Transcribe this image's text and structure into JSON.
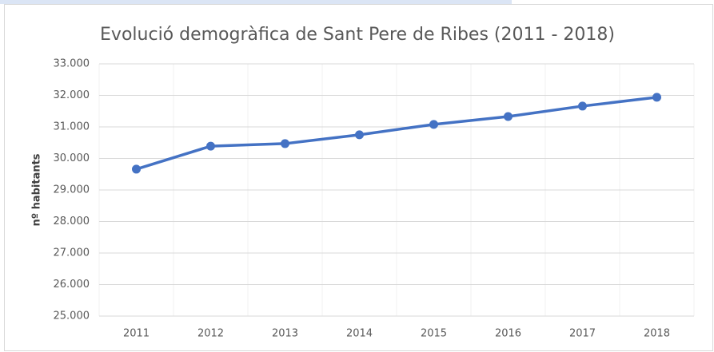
{
  "chart_data": {
    "type": "line",
    "title": "Evolució demogràfica de Sant Pere de Ribes (2011 - 2018)",
    "y_label": "nº habitants",
    "categories": [
      "2011",
      "2012",
      "2013",
      "2014",
      "2015",
      "2016",
      "2017",
      "2018"
    ],
    "series": [
      {
        "name": "nº habitants",
        "color": "#4472c4",
        "values": [
          29660,
          30390,
          30470,
          30750,
          31080,
          31330,
          31660,
          31940
        ]
      }
    ],
    "ylim": [
      25000,
      33000
    ],
    "yticks": [
      {
        "value": 25000,
        "label": "25.000"
      },
      {
        "value": 26000,
        "label": "26.000"
      },
      {
        "value": 27000,
        "label": "27.000"
      },
      {
        "value": 28000,
        "label": "28.000"
      },
      {
        "value": 29000,
        "label": "29.000"
      },
      {
        "value": 30000,
        "label": "30.000"
      },
      {
        "value": 31000,
        "label": "31.000"
      },
      {
        "value": 32000,
        "label": "32.000"
      },
      {
        "value": 33000,
        "label": "33.000"
      }
    ],
    "grid": true
  }
}
